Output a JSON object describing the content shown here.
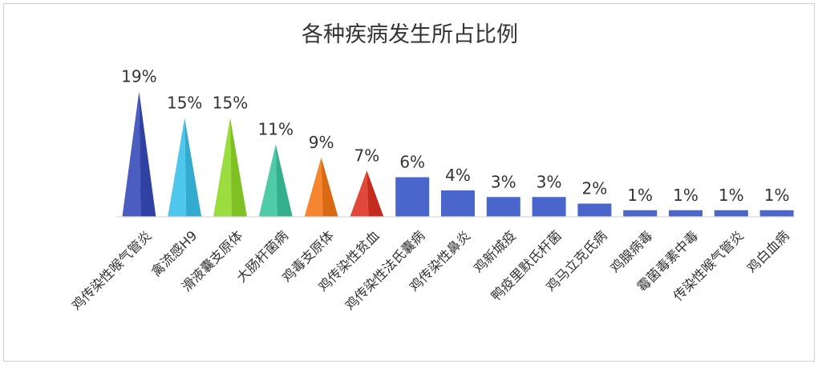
{
  "chart_data": {
    "type": "bar",
    "title": "各种疾病发生所占比例",
    "xlabel": "",
    "ylabel": "",
    "ylim": [
      0,
      20
    ],
    "grid": false,
    "legend": "none",
    "categories": [
      "鸡传染性喉气管炎",
      "禽流感H9",
      "滑液囊支原体",
      "大肠杆菌病",
      "鸡毒支原体",
      "鸡传染性贫血",
      "鸡传染性法氏囊病",
      "鸡传染性鼻炎",
      "鸡新城疫",
      "鸭疫里默氏杆菌",
      "鸡马立克氏病",
      "鸡腺病毒",
      "霉菌毒素中毒",
      "传染性喉气管炎",
      "鸡白血病"
    ],
    "values": [
      19,
      15,
      15,
      11,
      9,
      7,
      6,
      4,
      3,
      3,
      2,
      1,
      1,
      1,
      1
    ],
    "value_labels": [
      "19%",
      "15%",
      "15%",
      "11%",
      "9%",
      "7%",
      "6%",
      "4%",
      "3%",
      "3%",
      "2%",
      "1%",
      "1%",
      "1%",
      "1%"
    ],
    "marks": [
      "cone",
      "cone",
      "cone",
      "cone",
      "cone",
      "cone",
      "bar",
      "bar",
      "bar",
      "bar",
      "bar",
      "bar",
      "bar",
      "bar",
      "bar"
    ],
    "colors": [
      "#4B5EC0",
      "#4FC6EC",
      "#9BDC3F",
      "#4FCBA8",
      "#F5852E",
      "#E2483A",
      "#4A66CC",
      "#4A66CC",
      "#4A66CC",
      "#4A66CC",
      "#4A66CC",
      "#4A66CC",
      "#4A66CC",
      "#4A66CC",
      "#4A66CC"
    ]
  }
}
